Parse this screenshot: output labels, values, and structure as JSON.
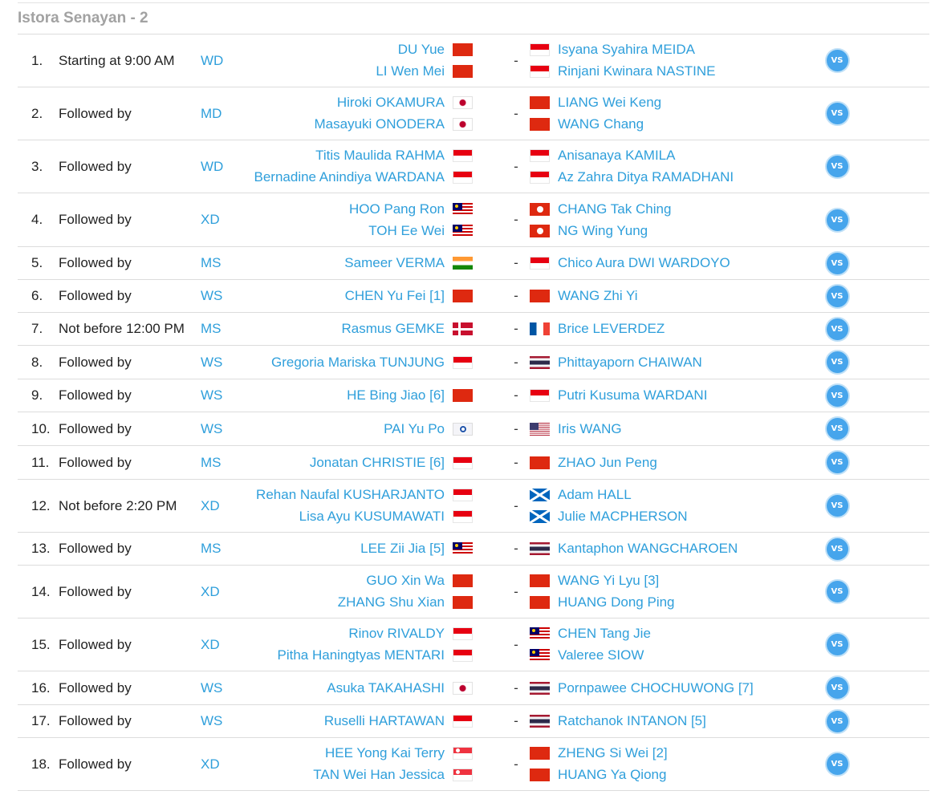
{
  "court": "Istora Senayan - 2",
  "vs_label": "VS",
  "matches": [
    {
      "num": "1.",
      "time": "Starting at 9:00 AM",
      "event": "WD",
      "left": [
        {
          "name": "DU Yue",
          "flag": "CHN"
        },
        {
          "name": "LI Wen Mei",
          "flag": "CHN"
        }
      ],
      "right": [
        {
          "name": "Isyana Syahira MEIDA",
          "flag": "INA"
        },
        {
          "name": "Rinjani Kwinara NASTINE",
          "flag": "INA"
        }
      ]
    },
    {
      "num": "2.",
      "time": "Followed by",
      "event": "MD",
      "left": [
        {
          "name": "Hiroki OKAMURA",
          "flag": "JPN"
        },
        {
          "name": "Masayuki ONODERA",
          "flag": "JPN"
        }
      ],
      "right": [
        {
          "name": "LIANG Wei Keng",
          "flag": "CHN"
        },
        {
          "name": "WANG Chang",
          "flag": "CHN"
        }
      ]
    },
    {
      "num": "3.",
      "time": "Followed by",
      "event": "WD",
      "left": [
        {
          "name": "Titis Maulida RAHMA",
          "flag": "INA"
        },
        {
          "name": "Bernadine Anindiya WARDANA",
          "flag": "INA"
        }
      ],
      "right": [
        {
          "name": "Anisanaya KAMILA",
          "flag": "INA"
        },
        {
          "name": "Az Zahra Ditya RAMADHANI",
          "flag": "INA"
        }
      ]
    },
    {
      "num": "4.",
      "time": "Followed by",
      "event": "XD",
      "left": [
        {
          "name": "HOO Pang Ron",
          "flag": "MAS"
        },
        {
          "name": "TOH Ee Wei",
          "flag": "MAS"
        }
      ],
      "right": [
        {
          "name": "CHANG Tak Ching",
          "flag": "HKG"
        },
        {
          "name": "NG Wing Yung",
          "flag": "HKG"
        }
      ]
    },
    {
      "num": "5.",
      "time": "Followed by",
      "event": "MS",
      "left": [
        {
          "name": "Sameer VERMA",
          "flag": "IND"
        }
      ],
      "right": [
        {
          "name": "Chico Aura DWI WARDOYO",
          "flag": "INA"
        }
      ]
    },
    {
      "num": "6.",
      "time": "Followed by",
      "event": "WS",
      "left": [
        {
          "name": "CHEN Yu Fei [1]",
          "flag": "CHN"
        }
      ],
      "right": [
        {
          "name": "WANG Zhi Yi",
          "flag": "CHN"
        }
      ]
    },
    {
      "num": "7.",
      "time": "Not before 12:00 PM",
      "event": "MS",
      "left": [
        {
          "name": "Rasmus GEMKE",
          "flag": "DEN"
        }
      ],
      "right": [
        {
          "name": "Brice LEVERDEZ",
          "flag": "FRA"
        }
      ]
    },
    {
      "num": "8.",
      "time": "Followed by",
      "event": "WS",
      "left": [
        {
          "name": "Gregoria Mariska TUNJUNG",
          "flag": "INA"
        }
      ],
      "right": [
        {
          "name": "Phittayaporn CHAIWAN",
          "flag": "THA"
        }
      ]
    },
    {
      "num": "9.",
      "time": "Followed by",
      "event": "WS",
      "left": [
        {
          "name": "HE Bing Jiao [6]",
          "flag": "CHN"
        }
      ],
      "right": [
        {
          "name": "Putri Kusuma WARDANI",
          "flag": "INA"
        }
      ]
    },
    {
      "num": "10.",
      "time": "Followed by",
      "event": "WS",
      "left": [
        {
          "name": "PAI Yu Po",
          "flag": "TPE"
        }
      ],
      "right": [
        {
          "name": "Iris WANG",
          "flag": "USA"
        }
      ]
    },
    {
      "num": "11.",
      "time": "Followed by",
      "event": "MS",
      "left": [
        {
          "name": "Jonatan CHRISTIE [6]",
          "flag": "INA"
        }
      ],
      "right": [
        {
          "name": "ZHAO Jun Peng",
          "flag": "CHN"
        }
      ]
    },
    {
      "num": "12.",
      "time": "Not before 2:20 PM",
      "event": "XD",
      "left": [
        {
          "name": "Rehan Naufal KUSHARJANTO",
          "flag": "INA"
        },
        {
          "name": "Lisa Ayu KUSUMAWATI",
          "flag": "INA"
        }
      ],
      "right": [
        {
          "name": "Adam HALL",
          "flag": "SCO"
        },
        {
          "name": "Julie MACPHERSON",
          "flag": "SCO"
        }
      ]
    },
    {
      "num": "13.",
      "time": "Followed by",
      "event": "MS",
      "left": [
        {
          "name": "LEE Zii Jia [5]",
          "flag": "MAS"
        }
      ],
      "right": [
        {
          "name": "Kantaphon WANGCHAROEN",
          "flag": "THA"
        }
      ]
    },
    {
      "num": "14.",
      "time": "Followed by",
      "event": "XD",
      "left": [
        {
          "name": "GUO Xin Wa",
          "flag": "CHN"
        },
        {
          "name": "ZHANG Shu Xian",
          "flag": "CHN"
        }
      ],
      "right": [
        {
          "name": "WANG Yi Lyu [3]",
          "flag": "CHN"
        },
        {
          "name": "HUANG Dong Ping",
          "flag": "CHN"
        }
      ]
    },
    {
      "num": "15.",
      "time": "Followed by",
      "event": "XD",
      "left": [
        {
          "name": "Rinov RIVALDY",
          "flag": "INA"
        },
        {
          "name": "Pitha Haningtyas MENTARI",
          "flag": "INA"
        }
      ],
      "right": [
        {
          "name": "CHEN Tang Jie",
          "flag": "MAS"
        },
        {
          "name": "Valeree SIOW",
          "flag": "MAS"
        }
      ]
    },
    {
      "num": "16.",
      "time": "Followed by",
      "event": "WS",
      "left": [
        {
          "name": "Asuka TAKAHASHI",
          "flag": "JPN"
        }
      ],
      "right": [
        {
          "name": "Pornpawee CHOCHUWONG [7]",
          "flag": "THA"
        }
      ]
    },
    {
      "num": "17.",
      "time": "Followed by",
      "event": "WS",
      "left": [
        {
          "name": "Ruselli HARTAWAN",
          "flag": "INA"
        }
      ],
      "right": [
        {
          "name": "Ratchanok INTANON [5]",
          "flag": "THA"
        }
      ]
    },
    {
      "num": "18.",
      "time": "Followed by",
      "event": "XD",
      "left": [
        {
          "name": "HEE Yong Kai Terry",
          "flag": "SGP"
        },
        {
          "name": "TAN Wei Han Jessica",
          "flag": "SGP"
        }
      ],
      "right": [
        {
          "name": "ZHENG Si Wei [2]",
          "flag": "CHN"
        },
        {
          "name": "HUANG Ya Qiong",
          "flag": "CHN"
        }
      ]
    }
  ]
}
